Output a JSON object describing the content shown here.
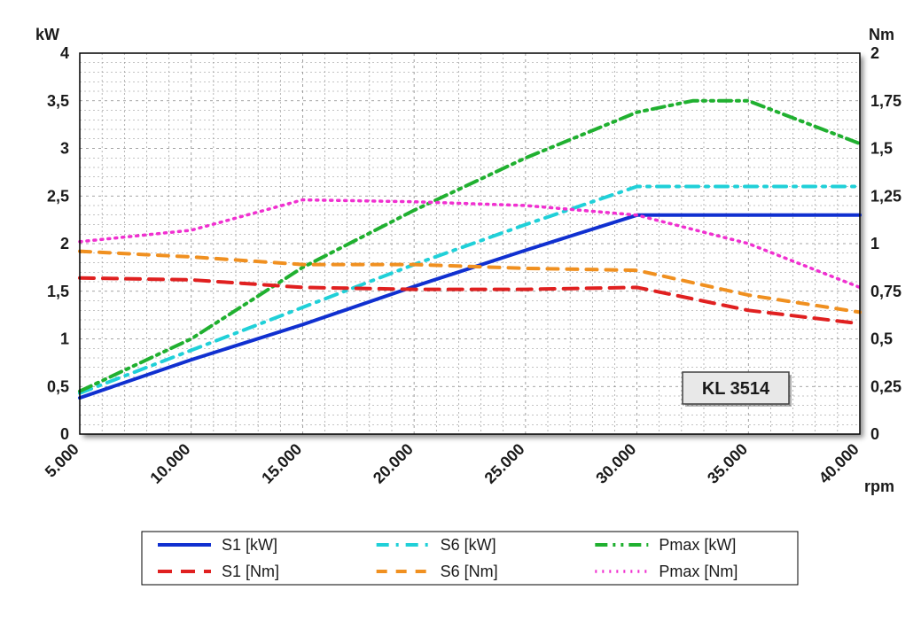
{
  "chart": {
    "type": "line",
    "background_color": "#ffffff",
    "plot_border_color": "#000000",
    "plot_border_width": 1.5,
    "grid_color_minor": "#888888",
    "grid_dash_minor": "2,3",
    "annotation": "KL 3514",
    "y_left": {
      "label": "kW",
      "min": 0,
      "max": 4,
      "ticks": [
        "0",
        "0,5",
        "1",
        "1,5",
        "2",
        "2,5",
        "3",
        "3,5",
        "4"
      ],
      "tick_values": [
        0,
        0.5,
        1,
        1.5,
        2,
        2.5,
        3,
        3.5,
        4
      ]
    },
    "y_right": {
      "label": "Nm",
      "min": 0,
      "max": 2,
      "ticks": [
        "0",
        "0,25",
        "0,5",
        "0,75",
        "1",
        "1,25",
        "1,5",
        "1,75",
        "2"
      ],
      "tick_values": [
        0,
        0.25,
        0.5,
        0.75,
        1,
        1.25,
        1.5,
        1.75,
        2
      ]
    },
    "x": {
      "label": "rpm",
      "ticks": [
        "5.000",
        "10.000",
        "15.000",
        "20.000",
        "25.000",
        "30.000",
        "35.000",
        "40.000"
      ],
      "tick_values": [
        5000,
        10000,
        15000,
        20000,
        25000,
        30000,
        35000,
        40000
      ],
      "min": 5000,
      "max": 40000,
      "minor_subdiv": 5
    },
    "series": [
      {
        "name": "S1 [kW]",
        "color": "#1030d0",
        "width": 4,
        "dash": "",
        "axis": "left",
        "x": [
          5000,
          10000,
          15000,
          20000,
          25000,
          30000,
          35000,
          40000
        ],
        "y": [
          0.38,
          0.78,
          1.15,
          1.55,
          1.93,
          2.3,
          2.3,
          2.3
        ]
      },
      {
        "name": "S6 [kW]",
        "color": "#20d0d8",
        "width": 4,
        "dash": "14,8,3,8",
        "axis": "left",
        "x": [
          5000,
          10000,
          15000,
          20000,
          25000,
          30000,
          35000,
          40000
        ],
        "y": [
          0.43,
          0.88,
          1.33,
          1.78,
          2.2,
          2.6,
          2.6,
          2.6
        ]
      },
      {
        "name": "Pmax [kW]",
        "color": "#20b030",
        "width": 4,
        "dash": "14,6,3,6,3,6",
        "axis": "left",
        "x": [
          5000,
          10000,
          15000,
          20000,
          25000,
          30000,
          32500,
          35000,
          40000
        ],
        "y": [
          0.45,
          1.0,
          1.75,
          2.35,
          2.9,
          3.38,
          3.5,
          3.5,
          3.05
        ]
      },
      {
        "name": "S1 [Nm]",
        "color": "#e02020",
        "width": 4,
        "dash": "16,10",
        "axis": "right",
        "x": [
          5000,
          10000,
          15000,
          20000,
          25000,
          30000,
          35000,
          40000
        ],
        "y": [
          0.82,
          0.81,
          0.77,
          0.76,
          0.76,
          0.77,
          0.65,
          0.58
        ]
      },
      {
        "name": "S6 [Nm]",
        "color": "#f09020",
        "width": 4,
        "dash": "12,10",
        "axis": "right",
        "x": [
          5000,
          10000,
          15000,
          20000,
          25000,
          30000,
          35000,
          40000
        ],
        "y": [
          0.96,
          0.93,
          0.89,
          0.89,
          0.87,
          0.86,
          0.73,
          0.64
        ]
      },
      {
        "name": "Pmax [Nm]",
        "color": "#f030d0",
        "width": 3.5,
        "dash": "2,6",
        "axis": "right",
        "x": [
          5000,
          10000,
          15000,
          20000,
          25000,
          30000,
          35000,
          40000
        ],
        "y": [
          1.01,
          1.07,
          1.23,
          1.22,
          1.2,
          1.15,
          1.0,
          0.77
        ]
      }
    ],
    "legend": {
      "cols": 3,
      "rows": 2,
      "order": [
        0,
        1,
        2,
        3,
        4,
        5
      ]
    }
  }
}
